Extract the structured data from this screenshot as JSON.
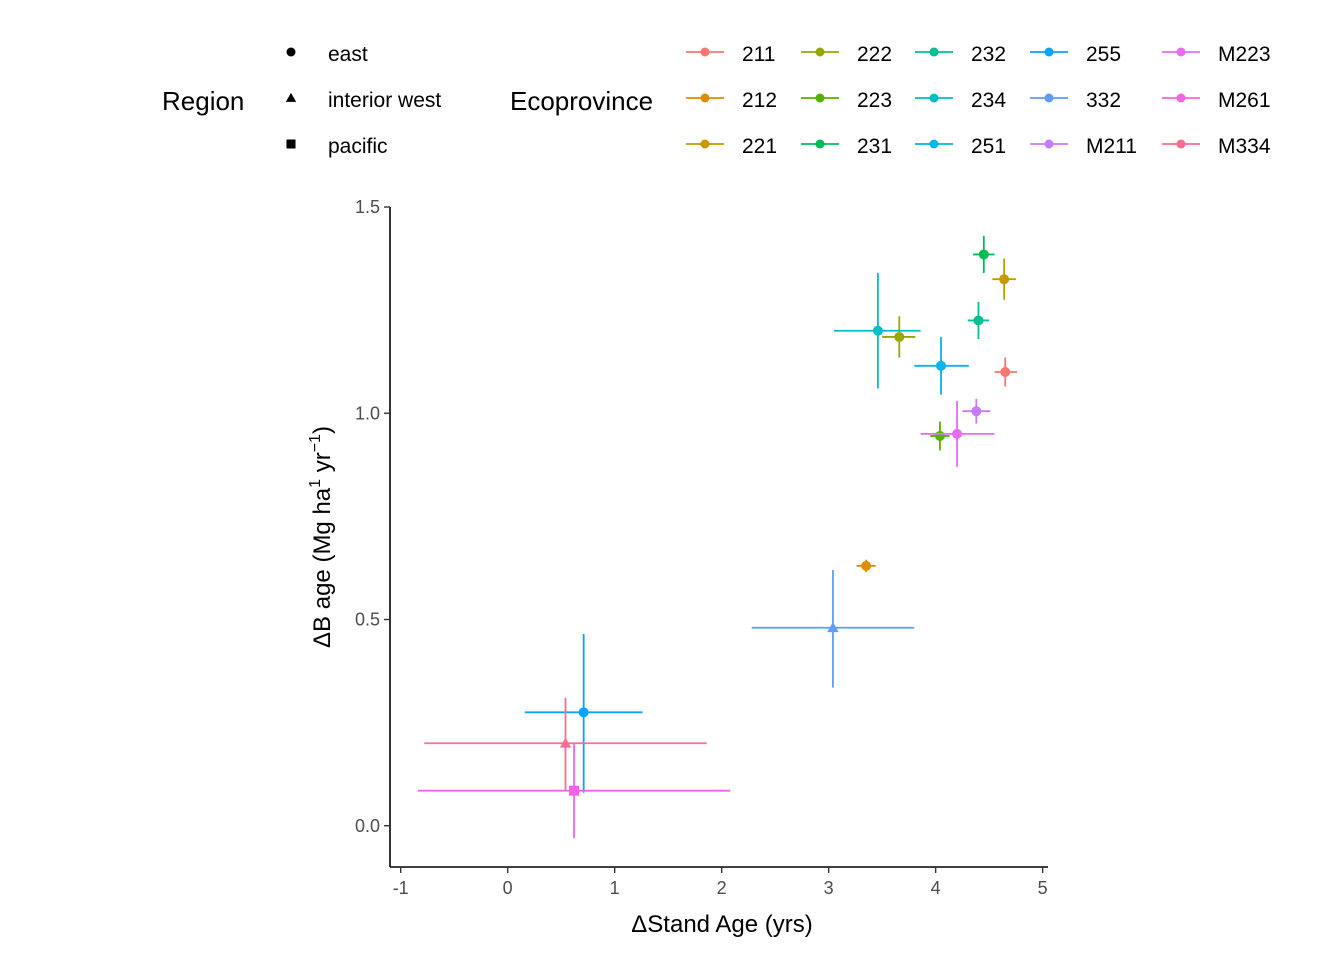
{
  "chart_data": {
    "type": "scatter",
    "xlabel": "ΔStand Age (yrs)",
    "ylabel_main": "ΔB age (Mg ha",
    "ylabel_sup1": "1",
    "ylabel_mid": " yr",
    "ylabel_sup2": "−1",
    "ylabel_end": ")",
    "xlim": [
      -1.1,
      5.05
    ],
    "ylim": [
      -0.1,
      1.5
    ],
    "x_ticks": [
      -1,
      0,
      1,
      2,
      3,
      4,
      5
    ],
    "x_tick_labels": [
      "-1",
      "0",
      "1",
      "2",
      "3",
      "4",
      "5"
    ],
    "y_ticks": [
      0.0,
      0.5,
      1.0,
      1.5
    ],
    "y_tick_labels": [
      "0.0",
      "0.5",
      "1.0",
      "1.5"
    ],
    "grid": false,
    "legend_region": {
      "title": "Region",
      "items": [
        {
          "label": "east",
          "shape": "circle"
        },
        {
          "label": "interior west",
          "shape": "triangle"
        },
        {
          "label": "pacific",
          "shape": "square"
        }
      ]
    },
    "legend_ecoprovince": {
      "title": "Ecoprovince",
      "items": [
        {
          "label": "211",
          "color": "#F8766D"
        },
        {
          "label": "212",
          "color": "#DE8C00"
        },
        {
          "label": "221",
          "color": "#C49A00"
        },
        {
          "label": "222",
          "color": "#99A800"
        },
        {
          "label": "223",
          "color": "#53B400"
        },
        {
          "label": "231",
          "color": "#00BC56"
        },
        {
          "label": "232",
          "color": "#00C094"
        },
        {
          "label": "234",
          "color": "#00BFC4"
        },
        {
          "label": "251",
          "color": "#00B6EB"
        },
        {
          "label": "255",
          "color": "#06A4FF"
        },
        {
          "label": "332",
          "color": "#619CFF"
        },
        {
          "label": "M211",
          "color": "#C77CFF"
        },
        {
          "label": "M223",
          "color": "#E76BF3"
        },
        {
          "label": "M261",
          "color": "#F564E3"
        },
        {
          "label": "M334",
          "color": "#FF6C91"
        }
      ]
    },
    "points": [
      {
        "eco": "211",
        "region": "east",
        "x": 4.65,
        "y": 1.1,
        "xmin": 4.55,
        "xmax": 4.76,
        "ymin": 1.065,
        "ymax": 1.135
      },
      {
        "eco": "212",
        "region": "east",
        "x": 3.35,
        "y": 0.63,
        "xmin": 3.26,
        "xmax": 3.44,
        "ymin": 0.615,
        "ymax": 0.645
      },
      {
        "eco": "221",
        "region": "east",
        "x": 4.64,
        "y": 1.325,
        "xmin": 4.53,
        "xmax": 4.75,
        "ymin": 1.275,
        "ymax": 1.375
      },
      {
        "eco": "222",
        "region": "east",
        "x": 3.66,
        "y": 1.185,
        "xmin": 3.5,
        "xmax": 3.81,
        "ymin": 1.135,
        "ymax": 1.235
      },
      {
        "eco": "223",
        "region": "east",
        "x": 4.04,
        "y": 0.945,
        "xmin": 3.95,
        "xmax": 4.13,
        "ymin": 0.91,
        "ymax": 0.98
      },
      {
        "eco": "231",
        "region": "east",
        "x": 4.45,
        "y": 1.385,
        "xmin": 4.35,
        "xmax": 4.55,
        "ymin": 1.34,
        "ymax": 1.43
      },
      {
        "eco": "232",
        "region": "east",
        "x": 4.4,
        "y": 1.225,
        "xmin": 4.3,
        "xmax": 4.5,
        "ymin": 1.18,
        "ymax": 1.27
      },
      {
        "eco": "234",
        "region": "east",
        "x": 3.46,
        "y": 1.2,
        "xmin": 3.05,
        "xmax": 3.86,
        "ymin": 1.06,
        "ymax": 1.34
      },
      {
        "eco": "251",
        "region": "east",
        "x": 4.05,
        "y": 1.115,
        "xmin": 3.8,
        "xmax": 4.31,
        "ymin": 1.045,
        "ymax": 1.185
      },
      {
        "eco": "255",
        "region": "east",
        "x": 0.71,
        "y": 0.275,
        "xmin": 0.16,
        "xmax": 1.26,
        "ymin": 0.08,
        "ymax": 0.465
      },
      {
        "eco": "332",
        "region": "interior west",
        "x": 3.04,
        "y": 0.48,
        "xmin": 2.28,
        "xmax": 3.8,
        "ymin": 0.335,
        "ymax": 0.62
      },
      {
        "eco": "M211",
        "region": "east",
        "x": 4.38,
        "y": 1.005,
        "xmin": 4.25,
        "xmax": 4.51,
        "ymin": 0.975,
        "ymax": 1.035
      },
      {
        "eco": "M223",
        "region": "east",
        "x": 4.2,
        "y": 0.95,
        "xmin": 3.86,
        "xmax": 4.55,
        "ymin": 0.87,
        "ymax": 1.03
      },
      {
        "eco": "M261",
        "region": "pacific",
        "x": 0.62,
        "y": 0.085,
        "xmin": -0.84,
        "xmax": 2.08,
        "ymin": -0.03,
        "ymax": 0.2
      },
      {
        "eco": "M334",
        "region": "interior west",
        "x": 0.54,
        "y": 0.2,
        "xmin": -0.78,
        "xmax": 1.86,
        "ymin": 0.085,
        "ymax": 0.31
      }
    ]
  }
}
